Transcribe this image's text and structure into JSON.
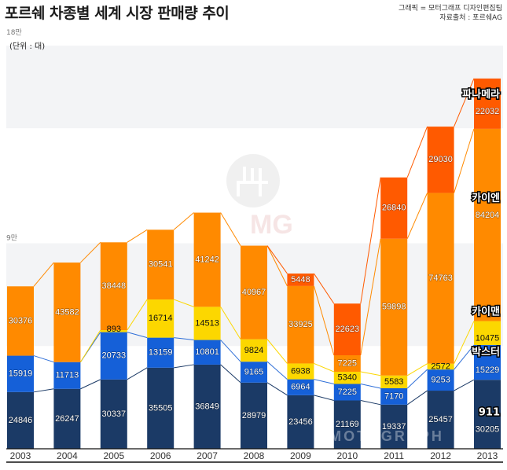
{
  "header": {
    "title": "포르쉐 차종별 세계 시장 판매량 추이",
    "credit_line1": "그래픽 = 모터그래프 디자인편집팀",
    "credit_line2": "자료출처 : 포르쉐AG"
  },
  "chart_data": {
    "type": "bar",
    "stacked": true,
    "title": "포르쉐 차종별 세계 시장 판매량 추이",
    "unit_label": "(단위 : 대)",
    "xlabel": "",
    "ylabel": "",
    "ylim": [
      0,
      180000
    ],
    "yticks": [
      {
        "value": 90000,
        "label": "9만"
      },
      {
        "value": 180000,
        "label": "18만"
      }
    ],
    "grid": "alternating bands",
    "categories": [
      "2003",
      "2004",
      "2005",
      "2006",
      "2007",
      "2008",
      "2009",
      "2010",
      "2011",
      "2012",
      "2013"
    ],
    "series": [
      {
        "name": "911",
        "color": "#1b3a66",
        "values": [
          24846,
          26247,
          30337,
          35505,
          36849,
          28979,
          23456,
          21169,
          19337,
          25457,
          30205
        ]
      },
      {
        "name": "박스터",
        "color": "#1560d8",
        "values": [
          15919,
          11713,
          20733,
          13159,
          10801,
          9165,
          6964,
          7225,
          7170,
          9253,
          15229
        ]
      },
      {
        "name": "카이맨",
        "color": "#fcd700",
        "values": [
          0,
          0,
          893,
          16714,
          14513,
          9824,
          6938,
          5340,
          5583,
          2572,
          10475
        ]
      },
      {
        "name": "카이엔",
        "color": "#ff8a00",
        "values": [
          30376,
          43582,
          38448,
          30541,
          41242,
          40967,
          33925,
          7225,
          59898,
          74763,
          84204
        ]
      },
      {
        "name": "파나메라",
        "color": "#ff5a00",
        "values": [
          0,
          0,
          0,
          0,
          0,
          0,
          5448,
          22623,
          26840,
          29030,
          22032
        ]
      }
    ],
    "value_labels": [
      [
        "24846",
        "26247",
        "30337",
        "35505",
        "36849",
        "28979",
        "23456",
        "21169",
        "19337",
        "25457",
        "30205"
      ],
      [
        "15919",
        "11713",
        "20733",
        "13159",
        "10801",
        "9165",
        "6964",
        "7225",
        "7170",
        "9253",
        "15229"
      ],
      [
        "",
        "",
        "893",
        "16714",
        "14513",
        "9824",
        "6938",
        "5340",
        "5583",
        "2572",
        "10475"
      ],
      [
        "30376",
        "43582",
        "38448",
        "30541",
        "41242",
        "40967",
        "33925",
        "7225",
        "59898",
        "74763",
        "84204"
      ],
      [
        "",
        "",
        "",
        "",
        "",
        "",
        "5448",
        "22623",
        "26840",
        "29030",
        "22032"
      ]
    ],
    "series_labels_at_last_bar": [
      "911",
      "박스터",
      "카이맨",
      "카이엔",
      "파나메라"
    ],
    "watermark": "MOTOGRAPH"
  }
}
